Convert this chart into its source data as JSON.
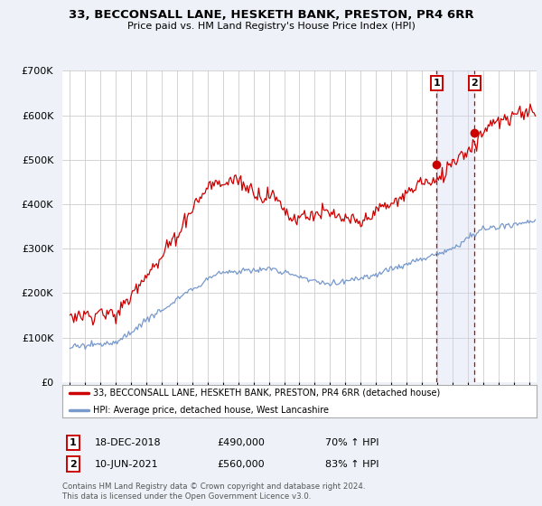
{
  "title": "33, BECCONSALL LANE, HESKETH BANK, PRESTON, PR4 6RR",
  "subtitle": "Price paid vs. HM Land Registry's House Price Index (HPI)",
  "red_label": "33, BECCONSALL LANE, HESKETH BANK, PRESTON, PR4 6RR (detached house)",
  "blue_label": "HPI: Average price, detached house, West Lancashire",
  "red_color": "#cc0000",
  "blue_color": "#7799cc",
  "marker1_label": "1",
  "marker1_date": "18-DEC-2018",
  "marker1_price": "£490,000",
  "marker1_hpi": "70% ↑ HPI",
  "marker1_x": 2018.96,
  "marker1_y": 490000,
  "marker2_label": "2",
  "marker2_date": "10-JUN-2021",
  "marker2_price": "£560,000",
  "marker2_hpi": "83% ↑ HPI",
  "marker2_x": 2021.44,
  "marker2_y": 560000,
  "ylim": [
    0,
    700000
  ],
  "xlim_start": 1994.5,
  "xlim_end": 2025.5,
  "yticks": [
    0,
    100000,
    200000,
    300000,
    400000,
    500000,
    600000,
    700000
  ],
  "footnote1": "Contains HM Land Registry data © Crown copyright and database right 2024.",
  "footnote2": "This data is licensed under the Open Government Licence v3.0.",
  "background_color": "#eef2f8",
  "plot_bg_color": "#ffffff",
  "grid_color": "#cccccc",
  "span_color": "#d0d8ee"
}
